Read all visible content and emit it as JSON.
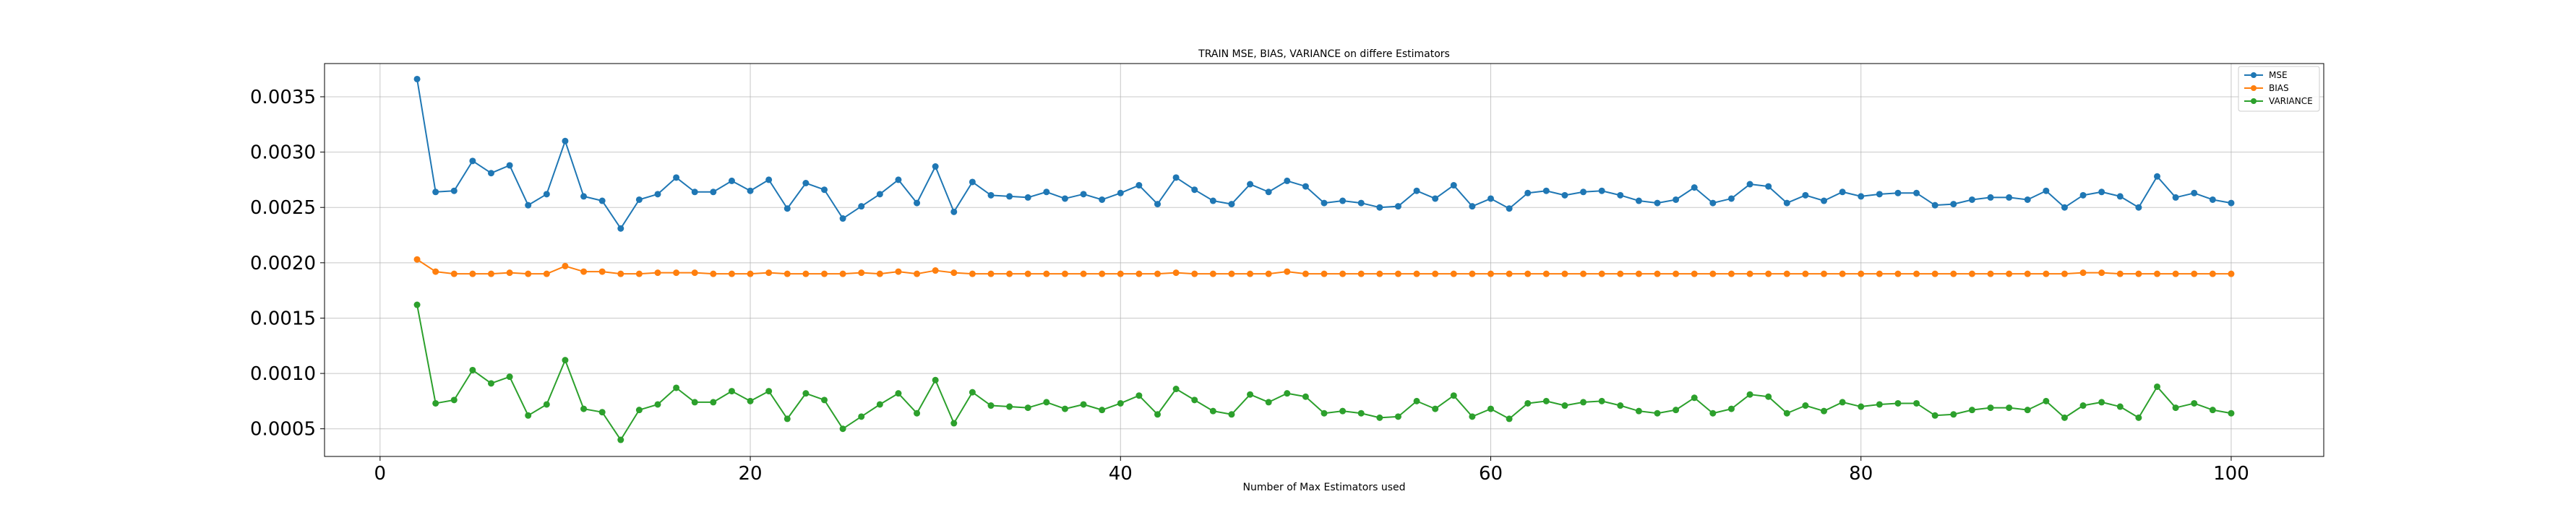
{
  "chart_data": {
    "type": "line",
    "title": "TRAIN MSE, BIAS, VARIANCE on differe Estimators",
    "xlabel": "Number of Max Estimators used",
    "ylabel": "",
    "xlim": [
      -3,
      105
    ],
    "ylim": [
      0.00025,
      0.0038
    ],
    "xticks": [
      0,
      20,
      40,
      60,
      80,
      100
    ],
    "xtick_labels": [
      "0",
      "20",
      "40",
      "60",
      "80",
      "100"
    ],
    "yticks": [
      0.0005,
      0.001,
      0.0015,
      0.002,
      0.0025,
      0.003,
      0.0035
    ],
    "ytick_labels": [
      "0.0005",
      "0.0010",
      "0.0015",
      "0.0020",
      "0.0025",
      "0.0030",
      "0.0035"
    ],
    "grid": true,
    "legend_position": "top-right",
    "x_start": 2,
    "series": [
      {
        "name": "MSE",
        "color": "#1f77b4",
        "marker": "circle",
        "values": [
          0.00366,
          0.00264,
          0.00265,
          0.00292,
          0.00281,
          0.00288,
          0.00252,
          0.00262,
          0.0031,
          0.0026,
          0.00256,
          0.00231,
          0.00257,
          0.00262,
          0.00277,
          0.00264,
          0.00264,
          0.00274,
          0.00265,
          0.00275,
          0.00249,
          0.00272,
          0.00266,
          0.0024,
          0.00251,
          0.00262,
          0.00275,
          0.00254,
          0.00287,
          0.00246,
          0.00273,
          0.00261,
          0.0026,
          0.00259,
          0.00264,
          0.00258,
          0.00262,
          0.00257,
          0.00263,
          0.0027,
          0.00253,
          0.00277,
          0.00266,
          0.00256,
          0.00253,
          0.00271,
          0.00264,
          0.00274,
          0.00269,
          0.00254,
          0.00256,
          0.00254,
          0.0025,
          0.00251,
          0.00265,
          0.00258,
          0.0027,
          0.00251,
          0.00258,
          0.00249,
          0.00263,
          0.00265,
          0.00261,
          0.00264,
          0.00265,
          0.00261,
          0.00256,
          0.00254,
          0.00257,
          0.00268,
          0.00254,
          0.00258,
          0.00271,
          0.00269,
          0.00254,
          0.00261,
          0.00256,
          0.00264,
          0.0026,
          0.00262,
          0.00263,
          0.00263,
          0.00252,
          0.00253,
          0.00257,
          0.00259,
          0.00259,
          0.00257,
          0.00265,
          0.0025,
          0.00261,
          0.00264,
          0.0026,
          0.0025,
          0.00278,
          0.00259,
          0.00263,
          0.00257,
          0.00254
        ]
      },
      {
        "name": "BIAS",
        "color": "#ff7f0e",
        "marker": "circle",
        "values": [
          0.00203,
          0.00192,
          0.0019,
          0.0019,
          0.0019,
          0.00191,
          0.0019,
          0.0019,
          0.00197,
          0.00192,
          0.00192,
          0.0019,
          0.0019,
          0.00191,
          0.00191,
          0.00191,
          0.0019,
          0.0019,
          0.0019,
          0.00191,
          0.0019,
          0.0019,
          0.0019,
          0.0019,
          0.00191,
          0.0019,
          0.00192,
          0.0019,
          0.00193,
          0.00191,
          0.0019,
          0.0019,
          0.0019,
          0.0019,
          0.0019,
          0.0019,
          0.0019,
          0.0019,
          0.0019,
          0.0019,
          0.0019,
          0.00191,
          0.0019,
          0.0019,
          0.0019,
          0.0019,
          0.0019,
          0.00192,
          0.0019,
          0.0019,
          0.0019,
          0.0019,
          0.0019,
          0.0019,
          0.0019,
          0.0019,
          0.0019,
          0.0019,
          0.0019,
          0.0019,
          0.0019,
          0.0019,
          0.0019,
          0.0019,
          0.0019,
          0.0019,
          0.0019,
          0.0019,
          0.0019,
          0.0019,
          0.0019,
          0.0019,
          0.0019,
          0.0019,
          0.0019,
          0.0019,
          0.0019,
          0.0019,
          0.0019,
          0.0019,
          0.0019,
          0.0019,
          0.0019,
          0.0019,
          0.0019,
          0.0019,
          0.0019,
          0.0019,
          0.0019,
          0.0019,
          0.00191,
          0.00191,
          0.0019,
          0.0019,
          0.0019,
          0.0019,
          0.0019,
          0.0019,
          0.0019
        ]
      },
      {
        "name": "VARIANCE",
        "color": "#2ca02c",
        "marker": "circle",
        "values": [
          0.00162,
          0.00073,
          0.00076,
          0.00103,
          0.00091,
          0.00097,
          0.00062,
          0.00072,
          0.00112,
          0.00068,
          0.00065,
          0.0004,
          0.00067,
          0.00072,
          0.00087,
          0.00074,
          0.00074,
          0.00084,
          0.00075,
          0.00084,
          0.00059,
          0.00082,
          0.00076,
          0.0005,
          0.00061,
          0.00072,
          0.00082,
          0.00064,
          0.00094,
          0.00055,
          0.00083,
          0.00071,
          0.0007,
          0.00069,
          0.00074,
          0.00068,
          0.00072,
          0.00067,
          0.00073,
          0.0008,
          0.00063,
          0.00086,
          0.00076,
          0.00066,
          0.00063,
          0.00081,
          0.00074,
          0.00082,
          0.00079,
          0.00064,
          0.00066,
          0.00064,
          0.0006,
          0.00061,
          0.00075,
          0.00068,
          0.0008,
          0.00061,
          0.00068,
          0.00059,
          0.00073,
          0.00075,
          0.00071,
          0.00074,
          0.00075,
          0.00071,
          0.00066,
          0.00064,
          0.00067,
          0.00078,
          0.00064,
          0.00068,
          0.00081,
          0.00079,
          0.00064,
          0.00071,
          0.00066,
          0.00074,
          0.0007,
          0.00072,
          0.00073,
          0.00073,
          0.00062,
          0.00063,
          0.00067,
          0.00069,
          0.00069,
          0.00067,
          0.00075,
          0.0006,
          0.00071,
          0.00074,
          0.0007,
          0.0006,
          0.00088,
          0.00069,
          0.00073,
          0.00067,
          0.00064
        ]
      }
    ]
  }
}
